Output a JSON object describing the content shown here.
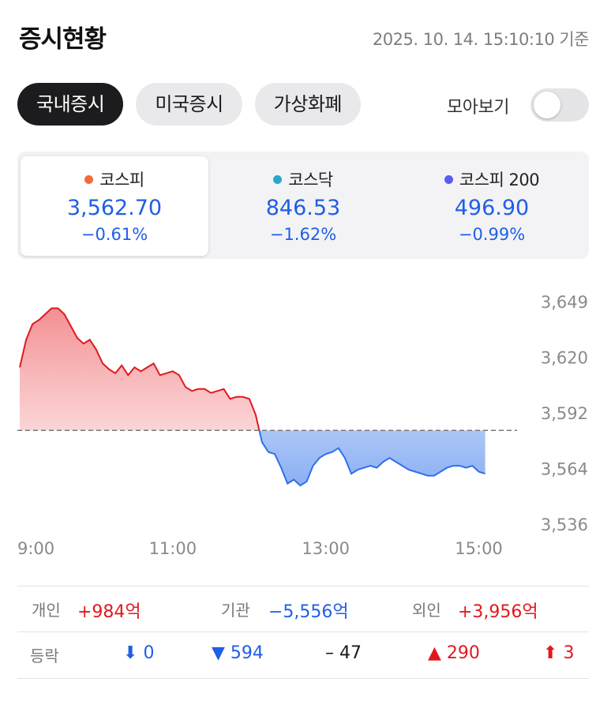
{
  "header": {
    "title": "증시현황",
    "timestamp": "2025. 10. 14. 15:10:10 기준"
  },
  "tabs": [
    {
      "label": "국내증시",
      "active": true
    },
    {
      "label": "미국증시",
      "active": false
    },
    {
      "label": "가상화폐",
      "active": false
    }
  ],
  "toggle": {
    "label": "모아보기",
    "on": false
  },
  "indices": [
    {
      "name": "코스피",
      "value": "3,562.70",
      "change": "−0.61%",
      "dot_color": "#f26b3a",
      "active": true
    },
    {
      "name": "코스닥",
      "value": "846.53",
      "change": "−1.62%",
      "dot_color": "#2aa7c9",
      "active": false
    },
    {
      "name": "코스피 200",
      "value": "496.90",
      "change": "−0.99%",
      "dot_color": "#5b5bf0",
      "active": false
    }
  ],
  "chart_data": {
    "type": "area",
    "series": [
      {
        "x": [
          540,
          545,
          550,
          555,
          560,
          565,
          570,
          575,
          580,
          585,
          590,
          595,
          600,
          605,
          610,
          615,
          620,
          625,
          630,
          635,
          640,
          645,
          650,
          655,
          660,
          665,
          670,
          675,
          680,
          685,
          690,
          695,
          700,
          705,
          710,
          715,
          720,
          725,
          730,
          735,
          740,
          745,
          750,
          755,
          760,
          765,
          770,
          775,
          780,
          785,
          790,
          795,
          800,
          805,
          810,
          815,
          820,
          825,
          830,
          835,
          840,
          845,
          850,
          855,
          860,
          865,
          870,
          875,
          880,
          885,
          890,
          895,
          900,
          905
        ],
        "y": [
          3616,
          3630,
          3638,
          3640,
          3643,
          3646,
          3646,
          3643,
          3637,
          3631,
          3628,
          3630,
          3625,
          3618,
          3615,
          3613,
          3617,
          3612,
          3616,
          3614,
          3616,
          3618,
          3612,
          3613,
          3614,
          3612,
          3606,
          3604,
          3605,
          3605,
          3603,
          3604,
          3605,
          3600,
          3601,
          3601,
          3600,
          3592,
          3578,
          3573,
          3572,
          3565,
          3557,
          3559,
          3556,
          3558,
          3566,
          3570,
          3572,
          3573,
          3575,
          3570,
          3562,
          3564,
          3565,
          3566,
          3565,
          3568,
          3570,
          3568,
          3566,
          3564,
          3563,
          3562,
          3561,
          3561,
          3563,
          3565,
          3566,
          3566,
          3565,
          3566,
          3563,
          3562
        ]
      }
    ],
    "reference": 3584,
    "yticks": [
      "3,649",
      "3,620",
      "3,592",
      "3,564",
      "3,536"
    ],
    "xticks": [
      "9:00",
      "11:00",
      "13:00",
      "15:00"
    ],
    "colors": {
      "up": "#e0191f",
      "down": "#2f6fe8",
      "ref_line": "#777777"
    }
  },
  "investors": [
    {
      "label": "개인",
      "value": "+984억",
      "tone": "red"
    },
    {
      "label": "기관",
      "value": "−5,556억",
      "tone": "blue"
    },
    {
      "label": "외인",
      "value": "+3,956억",
      "tone": "red"
    }
  ],
  "breadth": {
    "label": "등락",
    "items": [
      {
        "icon": "arrow-down-icon",
        "glyph": "⬇",
        "value": "0",
        "tone": "blue"
      },
      {
        "icon": "triangle-down-icon",
        "glyph": "▼",
        "value": "594",
        "tone": "blue"
      },
      {
        "icon": "dash-icon",
        "glyph": "–",
        "value": "47",
        "tone": "black"
      },
      {
        "icon": "triangle-up-icon",
        "glyph": "▲",
        "value": "290",
        "tone": "red"
      },
      {
        "icon": "arrow-up-icon",
        "glyph": "⬆",
        "value": "3",
        "tone": "red"
      }
    ]
  }
}
